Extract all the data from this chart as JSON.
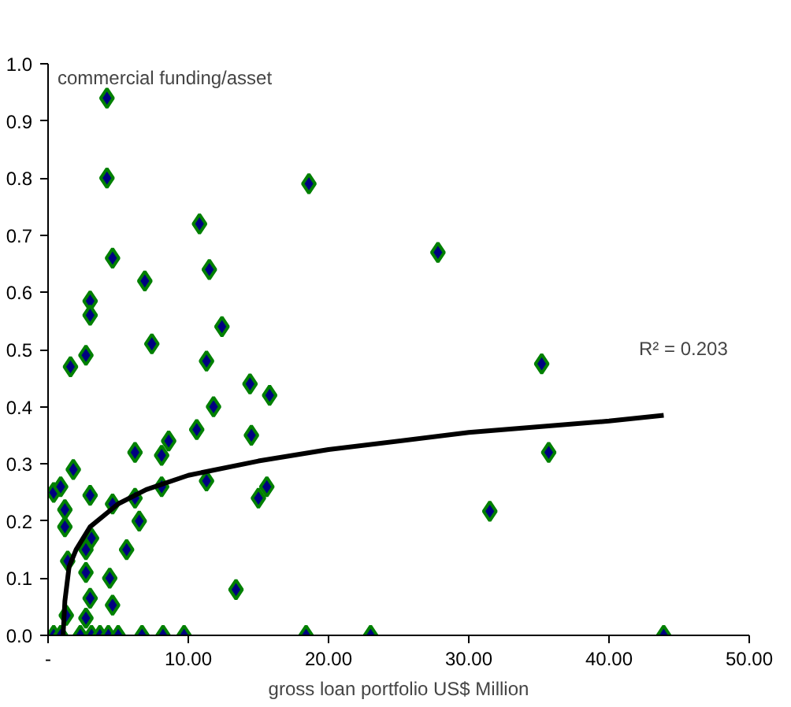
{
  "chart_data": {
    "type": "scatter",
    "xlabel": "gross loan portfolio US$ Million",
    "ylabel": "commercial funding/asset",
    "xlim": [
      0,
      50
    ],
    "ylim": [
      0,
      1
    ],
    "xticks": [
      {
        "value": 0,
        "label": "-"
      },
      {
        "value": 10,
        "label": "10.00"
      },
      {
        "value": 20,
        "label": "20.00"
      },
      {
        "value": 30,
        "label": "30.00"
      },
      {
        "value": 40,
        "label": "40.00"
      },
      {
        "value": 50,
        "label": "50.00"
      }
    ],
    "yticks": [
      {
        "value": 0,
        "label": "0.0"
      },
      {
        "value": 0.1,
        "label": "0.1"
      },
      {
        "value": 0.2,
        "label": "0.2"
      },
      {
        "value": 0.3,
        "label": "0.3"
      },
      {
        "value": 0.4,
        "label": "0.4"
      },
      {
        "value": 0.5,
        "label": "0.5"
      },
      {
        "value": 0.6,
        "label": "0.6"
      },
      {
        "value": 0.7,
        "label": "0.7"
      },
      {
        "value": 0.8,
        "label": "0.8"
      },
      {
        "value": 0.9,
        "label": "0.9"
      },
      {
        "value": 1,
        "label": "1.0"
      }
    ],
    "grid": false,
    "series": [
      {
        "color": "#000080",
        "marker": "diamond",
        "x": [
          4.2,
          4.2,
          4.6,
          6.9,
          3.0,
          3.0,
          2.7,
          1.6,
          7.4,
          10.8,
          11.5,
          12.4,
          11.3,
          14.4,
          15.8,
          18.6,
          11.8,
          10.6,
          14.5,
          6.2,
          8.6,
          8.1,
          1.8,
          11.3,
          8.1,
          0.4,
          0.9,
          3.0,
          4.6,
          6.2,
          15.6,
          15.0,
          1.2,
          1.2,
          6.5,
          3.1,
          2.7,
          5.6,
          1.4,
          2.7,
          4.4,
          13.4,
          3.0,
          4.6,
          1.3,
          2.7,
          0.4,
          0.9,
          2.3,
          3.1,
          3.7,
          4.3,
          5.0,
          6.7,
          8.2,
          9.7,
          18.4,
          23.0,
          43.9,
          27.8,
          35.2,
          35.7,
          31.5
        ],
        "values": [
          0.94,
          0.8,
          0.66,
          0.62,
          0.585,
          0.56,
          0.49,
          0.47,
          0.51,
          0.72,
          0.64,
          0.54,
          0.48,
          0.44,
          0.42,
          0.79,
          0.4,
          0.36,
          0.35,
          0.32,
          0.34,
          0.315,
          0.29,
          0.27,
          0.26,
          0.25,
          0.26,
          0.245,
          0.23,
          0.24,
          0.26,
          0.24,
          0.22,
          0.19,
          0.2,
          0.17,
          0.15,
          0.15,
          0.13,
          0.11,
          0.1,
          0.08,
          0.065,
          0.053,
          0.035,
          0.03,
          0,
          0,
          0,
          0,
          0,
          0,
          0,
          0,
          0,
          0,
          0,
          0,
          0,
          0.67,
          0.475,
          0.32,
          0.217
        ]
      },
      {
        "type": "line",
        "color": "#000000",
        "line_style": "solid",
        "x": [
          1.07,
          1.2,
          1.5,
          2,
          3,
          5,
          7,
          10,
          15,
          20,
          30,
          40,
          43.9
        ],
        "values": [
          0,
          0.06,
          0.12,
          0.15,
          0.19,
          0.23,
          0.255,
          0.28,
          0.305,
          0.325,
          0.355,
          0.375,
          0.385
        ]
      }
    ],
    "annotations": [
      "R² = 0.203"
    ]
  }
}
